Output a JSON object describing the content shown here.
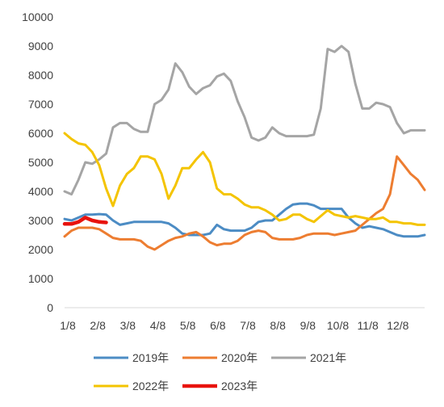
{
  "chart_data": {
    "type": "line",
    "title": "",
    "xlabel": "",
    "ylabel": "",
    "ylim": [
      0,
      10000
    ],
    "y_ticks": [
      "0",
      "1000",
      "2000",
      "3000",
      "4000",
      "5000",
      "6000",
      "7000",
      "8000",
      "9000",
      "10000"
    ],
    "x_ticks": [
      "1/8",
      "2/8",
      "3/8",
      "4/8",
      "5/8",
      "6/8",
      "7/8",
      "8/8",
      "9/8",
      "10/8",
      "11/8",
      "12/8"
    ],
    "x_unit": "week index (0 = 1/8, 52 = end of year)",
    "grid": false,
    "legend_position": "bottom",
    "series": [
      {
        "name": "2019年",
        "color": "#4C8CC4",
        "x": [
          0,
          1,
          2,
          3,
          4,
          5,
          6,
          7,
          8,
          9,
          10,
          11,
          12,
          13,
          14,
          15,
          16,
          17,
          18,
          19,
          20,
          21,
          22,
          23,
          24,
          25,
          26,
          27,
          28,
          29,
          30,
          31,
          32,
          33,
          34,
          35,
          36,
          37,
          38,
          39,
          40,
          41,
          42,
          43,
          44,
          45,
          46,
          47,
          48,
          49,
          50,
          51,
          52
        ],
        "values": [
          3050,
          3000,
          3100,
          3200,
          3200,
          3220,
          3200,
          3000,
          2850,
          2900,
          2950,
          2950,
          2950,
          2950,
          2950,
          2900,
          2750,
          2550,
          2500,
          2500,
          2500,
          2550,
          2850,
          2700,
          2650,
          2650,
          2650,
          2750,
          2950,
          3000,
          3000,
          3200,
          3400,
          3550,
          3580,
          3580,
          3520,
          3400,
          3400,
          3400,
          3400,
          3100,
          2900,
          2750,
          2800,
          2750,
          2700,
          2600,
          2500,
          2450,
          2450,
          2450,
          2500
        ]
      },
      {
        "name": "2020年",
        "color": "#ED7D31",
        "x": [
          0,
          1,
          2,
          3,
          4,
          5,
          6,
          7,
          8,
          9,
          10,
          11,
          12,
          13,
          14,
          15,
          16,
          17,
          18,
          19,
          20,
          21,
          22,
          23,
          24,
          25,
          26,
          27,
          28,
          29,
          30,
          31,
          32,
          33,
          34,
          35,
          36,
          37,
          38,
          39,
          40,
          41,
          42,
          43,
          44,
          45,
          46,
          47,
          48,
          49,
          50,
          51,
          52
        ],
        "values": [
          2450,
          2650,
          2750,
          2750,
          2750,
          2700,
          2550,
          2400,
          2350,
          2350,
          2350,
          2300,
          2100,
          2000,
          2150,
          2300,
          2400,
          2450,
          2550,
          2600,
          2450,
          2250,
          2150,
          2200,
          2200,
          2300,
          2500,
          2600,
          2650,
          2600,
          2400,
          2350,
          2350,
          2350,
          2400,
          2500,
          2550,
          2550,
          2550,
          2500,
          2550,
          2600,
          2650,
          2850,
          3050,
          3250,
          3400,
          3900,
          5200,
          4900,
          4600,
          4400,
          4050
        ]
      },
      {
        "name": "2021年",
        "color": "#A5A5A5",
        "x": [
          0,
          1,
          2,
          3,
          4,
          5,
          6,
          7,
          8,
          9,
          10,
          11,
          12,
          13,
          14,
          15,
          16,
          17,
          18,
          19,
          20,
          21,
          22,
          23,
          24,
          25,
          26,
          27,
          28,
          29,
          30,
          31,
          32,
          33,
          34,
          35,
          36,
          37,
          38,
          39,
          40,
          41,
          42,
          43,
          44,
          45,
          46,
          47,
          48,
          49,
          50,
          51,
          52
        ],
        "values": [
          4000,
          3900,
          4400,
          5000,
          4950,
          5100,
          5300,
          6200,
          6350,
          6350,
          6150,
          6050,
          6050,
          7000,
          7150,
          7500,
          8400,
          8100,
          7600,
          7350,
          7550,
          7650,
          7950,
          8050,
          7800,
          7100,
          6550,
          5850,
          5750,
          5850,
          6200,
          6000,
          5900,
          5900,
          5900,
          5900,
          5950,
          6850,
          8900,
          8800,
          9000,
          8800,
          7700,
          6850,
          6850,
          7050,
          7000,
          6900,
          6350,
          6000,
          6100,
          6100,
          6100
        ]
      },
      {
        "name": "2022年",
        "color": "#F4C400",
        "x": [
          0,
          1,
          2,
          3,
          4,
          5,
          6,
          7,
          8,
          9,
          10,
          11,
          12,
          13,
          14,
          15,
          16,
          17,
          18,
          19,
          20,
          21,
          22,
          23,
          24,
          25,
          26,
          27,
          28,
          29,
          30,
          31,
          32,
          33,
          34,
          35,
          36,
          37,
          38,
          39,
          40,
          41,
          42,
          43,
          44,
          45,
          46,
          47,
          48,
          49,
          50,
          51,
          52
        ],
        "values": [
          6000,
          5800,
          5650,
          5600,
          5350,
          4900,
          4100,
          3500,
          4200,
          4600,
          4800,
          5200,
          5200,
          5100,
          4600,
          3750,
          4200,
          4800,
          4800,
          5100,
          5350,
          5000,
          4100,
          3900,
          3900,
          3750,
          3550,
          3450,
          3450,
          3350,
          3200,
          3000,
          3050,
          3200,
          3200,
          3050,
          2950,
          3150,
          3350,
          3200,
          3150,
          3100,
          3150,
          3100,
          3050,
          3050,
          3100,
          2950,
          2950,
          2900,
          2900,
          2850,
          2850
        ]
      },
      {
        "name": "2023年",
        "color": "#E8130E",
        "x": [
          0,
          1,
          2,
          3,
          4,
          5,
          6
        ],
        "values": [
          2880,
          2880,
          2950,
          3100,
          3000,
          2950,
          2930
        ]
      }
    ]
  }
}
